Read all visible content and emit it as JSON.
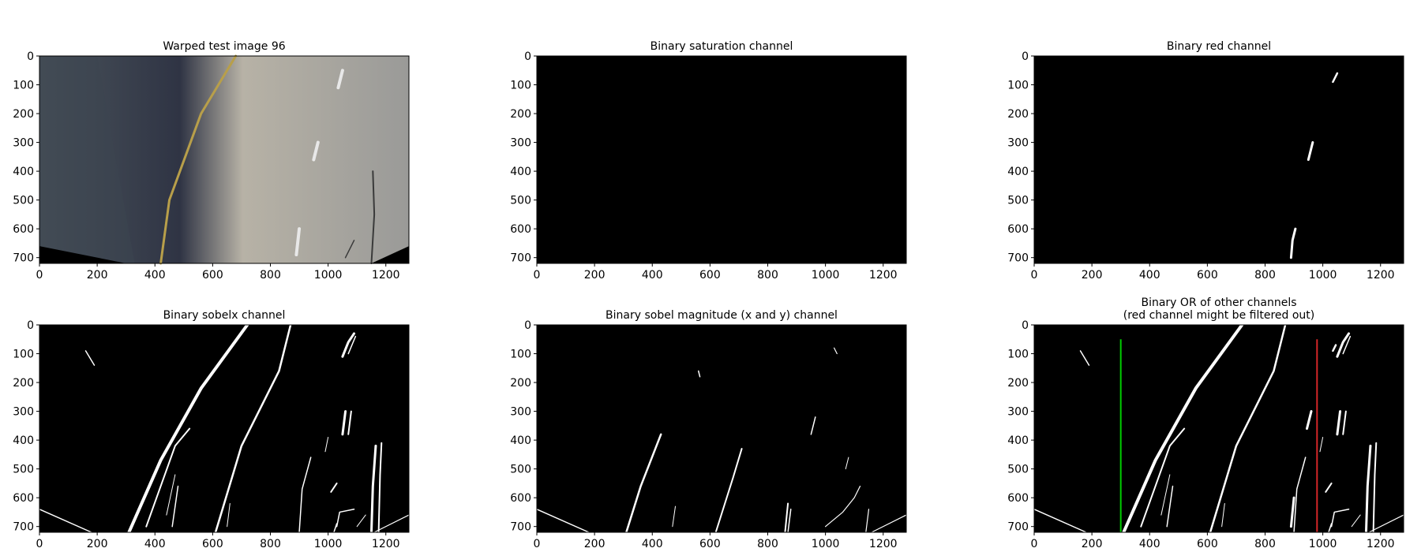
{
  "chart_data": [
    {
      "type": "image",
      "id": "warped",
      "title_lines": [
        "Warped test image 96"
      ],
      "xlim": [
        0,
        1280
      ],
      "ylim": [
        720,
        0
      ],
      "xticks": [
        0,
        200,
        400,
        600,
        800,
        1000,
        1200
      ],
      "yticks": [
        0,
        100,
        200,
        300,
        400,
        500,
        600,
        700
      ]
    },
    {
      "type": "image",
      "id": "saturation",
      "title_lines": [
        "Binary saturation channel"
      ],
      "xlim": [
        0,
        1280
      ],
      "ylim": [
        720,
        0
      ],
      "xticks": [
        0,
        200,
        400,
        600,
        800,
        1000,
        1200
      ],
      "yticks": [
        0,
        100,
        200,
        300,
        400,
        500,
        600,
        700
      ]
    },
    {
      "type": "image",
      "id": "red",
      "title_lines": [
        "Binary red channel"
      ],
      "xlim": [
        0,
        1280
      ],
      "ylim": [
        720,
        0
      ],
      "xticks": [
        0,
        200,
        400,
        600,
        800,
        1000,
        1200
      ],
      "yticks": [
        0,
        100,
        200,
        300,
        400,
        500,
        600,
        700
      ]
    },
    {
      "type": "image",
      "id": "sobelx",
      "title_lines": [
        "Binary sobelx channel"
      ],
      "xlim": [
        0,
        1280
      ],
      "ylim": [
        720,
        0
      ],
      "xticks": [
        0,
        200,
        400,
        600,
        800,
        1000,
        1200
      ],
      "yticks": [
        0,
        100,
        200,
        300,
        400,
        500,
        600,
        700
      ]
    },
    {
      "type": "image",
      "id": "sobelmag",
      "title_lines": [
        "Binary sobel magnitude (x and y) channel"
      ],
      "xlim": [
        0,
        1280
      ],
      "ylim": [
        720,
        0
      ],
      "xticks": [
        0,
        200,
        400,
        600,
        800,
        1000,
        1200
      ],
      "yticks": [
        0,
        100,
        200,
        300,
        400,
        500,
        600,
        700
      ]
    },
    {
      "type": "image",
      "id": "or",
      "title_lines": [
        "Binary OR of other channels",
        "(red channel might be filtered out)"
      ],
      "xlim": [
        0,
        1280
      ],
      "ylim": [
        720,
        0
      ],
      "xticks": [
        0,
        200,
        400,
        600,
        800,
        1000,
        1200
      ],
      "yticks": [
        0,
        100,
        200,
        300,
        400,
        500,
        600,
        700
      ],
      "vlines": [
        {
          "x": 300,
          "y_range": [
            50,
            720
          ],
          "color": "#00cc00"
        },
        {
          "x": 980,
          "y_range": [
            50,
            720
          ],
          "color": "#d62728"
        }
      ]
    }
  ]
}
